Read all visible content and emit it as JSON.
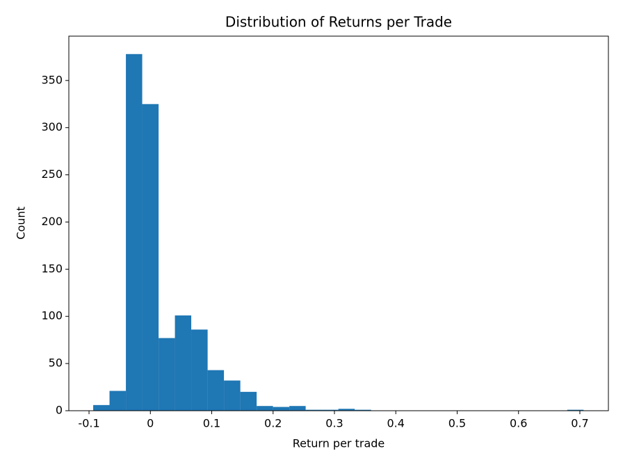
{
  "chart_data": {
    "type": "histogram",
    "title": "Distribution of Returns per Trade",
    "x_label": "Return per trade",
    "y_label": "Count",
    "color": "#1f77b4",
    "bins": [
      -0.0932,
      -0.0666,
      -0.0399,
      -0.0133,
      0.0134,
      0.04,
      0.0666,
      0.0933,
      0.1199,
      0.1466,
      0.1732,
      0.1998,
      0.2265,
      0.2531,
      0.2798,
      0.3064,
      0.333,
      0.3597,
      0.3863,
      0.413,
      0.4396,
      0.4662,
      0.4929,
      0.5195,
      0.5462,
      0.5728,
      0.5994,
      0.6261,
      0.6527,
      0.6794,
      0.706
    ],
    "values": [
      6,
      21,
      378,
      325,
      77,
      101,
      86,
      43,
      32,
      20,
      5,
      4,
      5,
      1,
      1,
      2,
      1,
      0,
      0,
      0,
      0,
      0,
      0,
      0,
      0,
      0,
      0,
      0,
      0,
      1
    ],
    "xlim": [
      -0.1329,
      0.7465
    ],
    "ylim": [
      0,
      397
    ],
    "xticks": [
      -0.1,
      0.0,
      0.1,
      0.2,
      0.3,
      0.4,
      0.5,
      0.6,
      0.7
    ],
    "yticks": [
      0,
      50,
      100,
      150,
      200,
      250,
      300,
      350
    ]
  }
}
